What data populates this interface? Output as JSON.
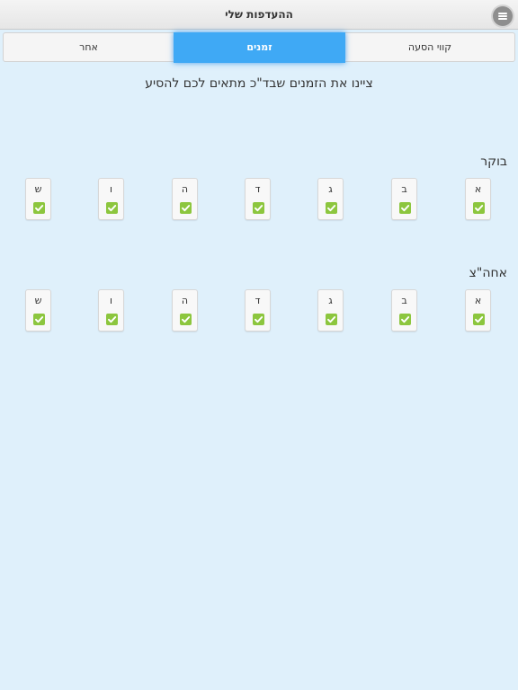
{
  "header": {
    "title": "ההעדפות שלי",
    "menu_icon": "hamburger-icon"
  },
  "tabs": [
    {
      "label": "אחר"
    },
    {
      "label": "זמנים",
      "active": true
    },
    {
      "label": "קווי הסעה"
    }
  ],
  "instruction": "ציינו את הזמנים שבד\"כ מתאים לכם להסיע",
  "sections": [
    {
      "label": "בוקר",
      "days": [
        {
          "letter": "א",
          "checked": true
        },
        {
          "letter": "ב",
          "checked": true
        },
        {
          "letter": "ג",
          "checked": true
        },
        {
          "letter": "ד",
          "checked": true
        },
        {
          "letter": "ה",
          "checked": true
        },
        {
          "letter": "ו",
          "checked": true
        },
        {
          "letter": "ש",
          "checked": true
        }
      ]
    },
    {
      "label": "אחה\"צ",
      "days": [
        {
          "letter": "א",
          "checked": true
        },
        {
          "letter": "ב",
          "checked": true
        },
        {
          "letter": "ג",
          "checked": true
        },
        {
          "letter": "ד",
          "checked": true
        },
        {
          "letter": "ה",
          "checked": true
        },
        {
          "letter": "ו",
          "checked": true
        },
        {
          "letter": "ש",
          "checked": true
        }
      ]
    }
  ],
  "colors": {
    "background": "#dff0fb",
    "active_tab": "#3fa9f5",
    "check": "#8cc63e"
  }
}
